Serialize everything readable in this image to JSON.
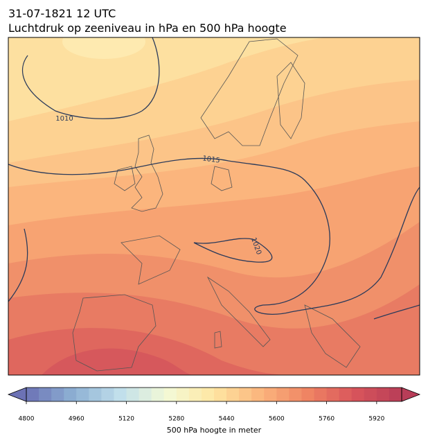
{
  "header": {
    "title": "31-07-1821 12 UTC",
    "subtitle": "Luchtdruk op zeeniveau in hPa en 500 hPa hoogte"
  },
  "map": {
    "isobar_labels": [
      "1010",
      "1015",
      "1020"
    ]
  },
  "colorbar": {
    "label": "500 hPa hoogte in meter",
    "levels": [
      4800,
      4840,
      4880,
      4920,
      4960,
      5000,
      5040,
      5080,
      5120,
      5160,
      5200,
      5240,
      5280,
      5320,
      5360,
      5400,
      5440,
      5480,
      5520,
      5560,
      5600,
      5640,
      5680,
      5720,
      5760,
      5800,
      5840,
      5880,
      5920,
      5960,
      6000
    ],
    "ticks": [
      4800,
      4960,
      5120,
      5280,
      5440,
      5600,
      5760,
      5920
    ],
    "colormap": [
      "#6c72b5",
      "#8db0d3",
      "#c1dfeb",
      "#f3f9d6",
      "#fee6a2",
      "#fbb57d",
      "#ef8463",
      "#d8555b",
      "#b83d58"
    ]
  }
}
